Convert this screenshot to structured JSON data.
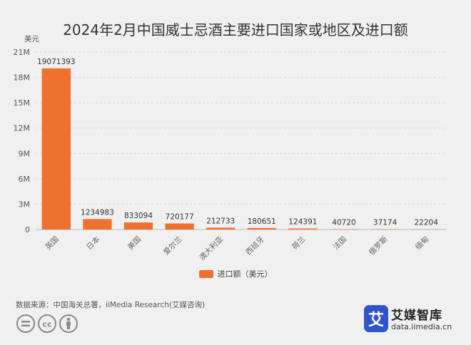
{
  "chart_data": {
    "type": "bar",
    "title": "2024年2月中国威士忌酒主要进口国家或地区及进口额",
    "ylabel": "美元",
    "categories": [
      "英国",
      "日本",
      "美国",
      "爱尔兰",
      "澳大利亚",
      "西班牙",
      "荷兰",
      "法国",
      "俄罗斯",
      "缅甸"
    ],
    "series": [
      {
        "name": "进口额（美元）",
        "values": [
          19071393,
          1234983,
          833094,
          720177,
          212733,
          180651,
          124391,
          40720,
          37174,
          22204
        ],
        "color": "#f07030"
      }
    ],
    "ylim": [
      0,
      21000000
    ],
    "yticks": [
      0,
      3000000,
      6000000,
      9000000,
      12000000,
      15000000,
      18000000,
      21000000
    ],
    "ytick_labels": [
      "0",
      "3M",
      "6M",
      "9M",
      "12M",
      "15M",
      "18M",
      "21M"
    ],
    "grid": true,
    "legend": "bottom"
  },
  "source_text": "数据来源：中国海关总署，iiMedia Research(艾媒咨询)",
  "logo": {
    "glyph": "艾",
    "name": "艾媒智库",
    "url": "data.iimedia.cn",
    "color": "#3355cc"
  },
  "cc_icons": [
    "equals-icon",
    "cc-icon",
    "person-icon"
  ]
}
